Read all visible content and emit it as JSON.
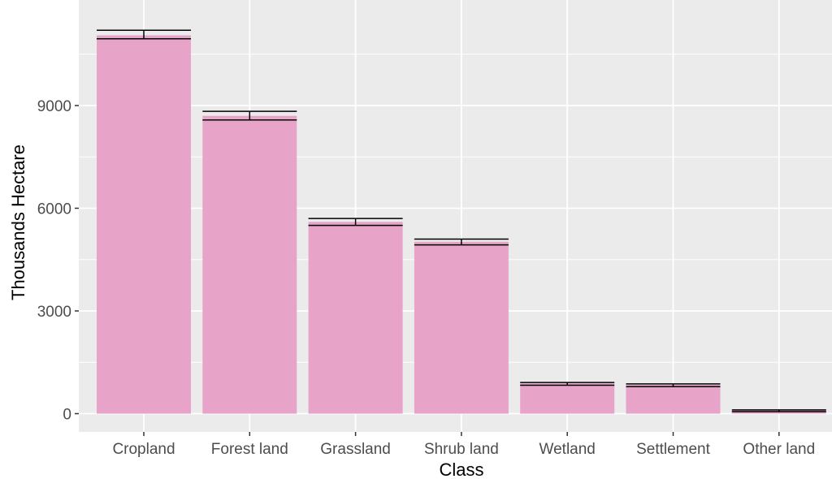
{
  "chart_data": {
    "type": "bar",
    "title": "",
    "xlabel": "Class",
    "ylabel": "Thousands Hectare",
    "categories": [
      "Cropland",
      "Forest land",
      "Grassland",
      "Shrub land",
      "Wetland",
      "Settlement",
      "Other land"
    ],
    "values": [
      11050,
      8700,
      5600,
      5020,
      880,
      840,
      90
    ],
    "error_low": [
      10950,
      8580,
      5500,
      4930,
      830,
      790,
      60
    ],
    "error_high": [
      11200,
      8830,
      5700,
      5100,
      910,
      870,
      110
    ],
    "ylim": [
      0,
      11500
    ],
    "yticks": [
      0,
      3000,
      6000,
      9000
    ],
    "grid": true,
    "colors": {
      "bar": "#e7a3c8",
      "panel": "#ebebeb",
      "grid_major": "#ffffff",
      "errorbar": "#000000"
    }
  }
}
